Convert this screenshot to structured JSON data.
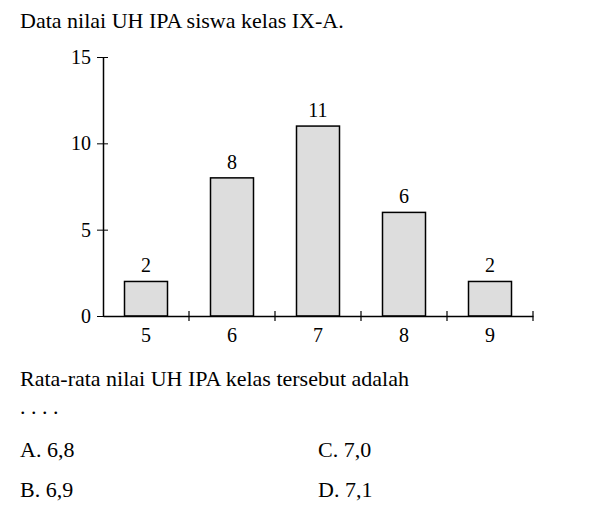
{
  "chart_data": {
    "type": "bar",
    "title": "Data nilai UH IPA siswa kelas IX-A.",
    "categories": [
      "5",
      "6",
      "7",
      "8",
      "9"
    ],
    "values": [
      2,
      8,
      11,
      6,
      2
    ],
    "color": "#dddddd",
    "ylim": [
      0,
      15
    ],
    "yticks": [
      0,
      5,
      10,
      15
    ],
    "data_labels": true,
    "annotations": [
      "Rata-rata nilai UH IPA kelas tersebut adalah",
      ". . . .",
      "A. 6,8",
      "B. 6,9",
      "C. 7,0",
      "D. 7,1"
    ]
  }
}
